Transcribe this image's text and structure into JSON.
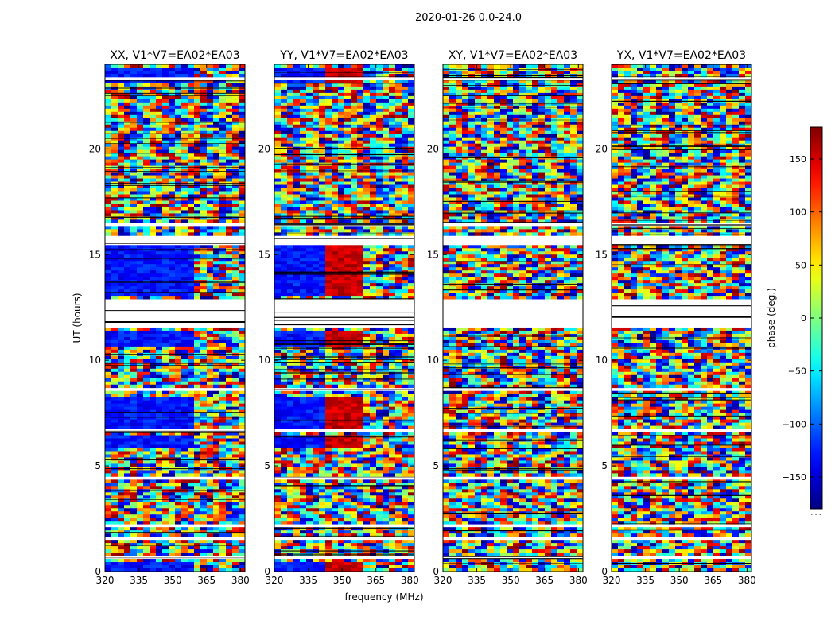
{
  "chart_data": {
    "type": "heatmap",
    "suptitle": "2020-01-26 0.0-24.0",
    "xlabel": "frequency (MHz)",
    "ylabel": "UT (hours)",
    "xlim": [
      320,
      382
    ],
    "ylim": [
      0,
      24
    ],
    "xticks": [
      320,
      335,
      350,
      365,
      380
    ],
    "yticks": [
      0,
      5,
      10,
      15,
      20
    ],
    "panels": [
      {
        "title": "XX, V1*V7=EA02*EA03",
        "pol": "XX",
        "blue_region": true,
        "red_region": false
      },
      {
        "title": "YY, V1*V7=EA02*EA03",
        "pol": "YY",
        "blue_region": true,
        "red_region": true
      },
      {
        "title": "XY, V1*V7=EA02*EA03",
        "pol": "XY",
        "blue_region": false,
        "red_region": false
      },
      {
        "title": "YX, V1*V7=EA02*EA03",
        "pol": "YX",
        "blue_region": false,
        "red_region": false
      }
    ],
    "colorbar": {
      "label": "phase (deg.)",
      "range": [
        -180,
        180
      ],
      "ticks": [
        150,
        100,
        50,
        0,
        -50,
        -100,
        -150
      ],
      "colormap": "jet",
      "footer": "....."
    },
    "flagged_hours": [
      [
        11.6,
        12.9
      ],
      [
        15.5,
        15.85
      ],
      [
        16.3,
        16.45
      ],
      [
        6.6,
        6.8
      ],
      [
        8.55,
        8.75
      ],
      [
        4.4,
        4.55
      ],
      [
        2.05,
        2.2
      ],
      [
        1.5,
        1.7
      ],
      [
        0.6,
        0.7
      ],
      [
        22.0,
        22.1
      ],
      [
        23.3,
        23.45
      ]
    ]
  }
}
